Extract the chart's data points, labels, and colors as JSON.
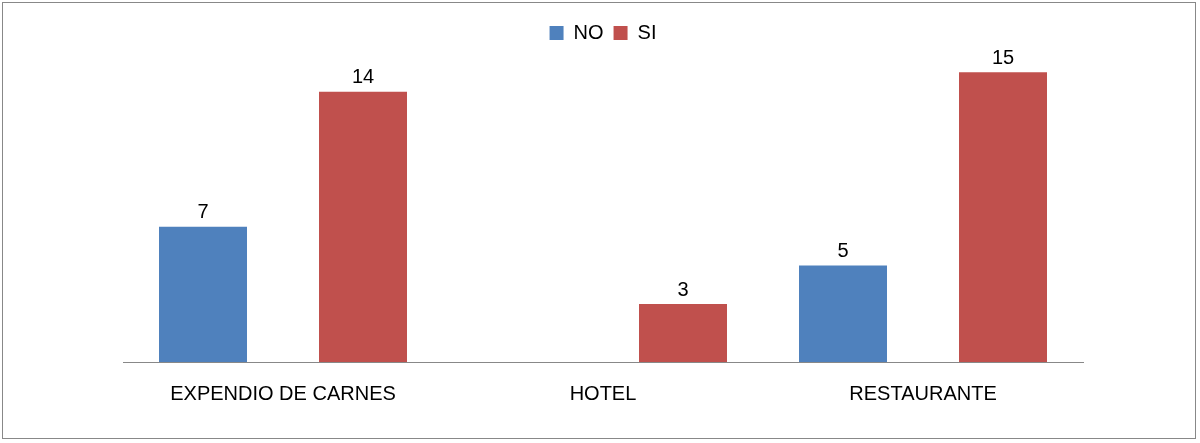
{
  "chart_data": {
    "type": "bar",
    "categories": [
      "EXPENDIO DE CARNES",
      "HOTEL",
      "RESTAURANTE"
    ],
    "series": [
      {
        "name": "NO",
        "color": "#4f81bd",
        "values": [
          7,
          null,
          5
        ]
      },
      {
        "name": "SI",
        "color": "#c0504d",
        "values": [
          14,
          3,
          15
        ]
      }
    ],
    "tick_labels": "x",
    "data_labels": true,
    "legend": "top",
    "grid": false
  }
}
